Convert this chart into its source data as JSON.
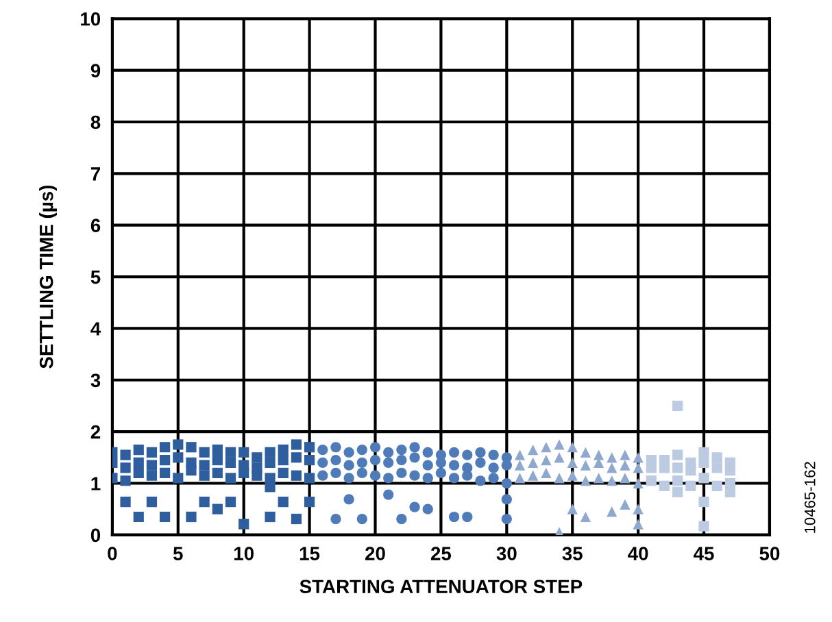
{
  "chart_data": {
    "type": "scatter",
    "xlabel": "STARTING ATTENUATOR STEP",
    "ylabel": "SETTLING TIME (µs)",
    "xlim": [
      0,
      50
    ],
    "ylim": [
      0,
      10
    ],
    "xticks": [
      0,
      5,
      10,
      15,
      20,
      25,
      30,
      35,
      40,
      45,
      50
    ],
    "yticks": [
      0,
      1,
      2,
      3,
      4,
      5,
      6,
      7,
      8,
      9,
      10
    ],
    "grid": true,
    "legend": false,
    "annotations": [
      "10465-162"
    ],
    "series": [
      {
        "color": "#2e5e9e",
        "marker": "square",
        "x": [
          0,
          0,
          0,
          1,
          1,
          1,
          2,
          2,
          2,
          3,
          3,
          3,
          4,
          4,
          4,
          5,
          5,
          5,
          6,
          6,
          6,
          7,
          7,
          7,
          8,
          8,
          8,
          9,
          9,
          9,
          10,
          10,
          10,
          11,
          11,
          11,
          12,
          12,
          12,
          13,
          13,
          13,
          14,
          14,
          14,
          15,
          15,
          15,
          1,
          2,
          3,
          4,
          6,
          7,
          8,
          9,
          10,
          12,
          12,
          13,
          14,
          15
        ],
        "values": [
          1.6,
          1.4,
          1.1,
          1.55,
          1.3,
          1.05,
          1.65,
          1.4,
          1.2,
          1.6,
          1.35,
          1.15,
          1.7,
          1.45,
          1.2,
          1.75,
          1.5,
          1.1,
          1.7,
          1.4,
          1.25,
          1.6,
          1.35,
          1.15,
          1.65,
          1.45,
          1.2,
          1.6,
          1.4,
          1.1,
          1.6,
          1.35,
          1.2,
          1.5,
          1.3,
          1.15,
          1.6,
          1.4,
          1.1,
          1.65,
          1.45,
          1.2,
          1.75,
          1.5,
          1.15,
          1.7,
          1.45,
          1.1,
          0.64,
          0.35,
          0.64,
          0.35,
          0.35,
          0.64,
          0.5,
          0.64,
          0.21,
          0.35,
          0.93,
          0.64,
          0.31,
          0.64
        ]
      },
      {
        "color": "#4f7cb8",
        "marker": "circle",
        "x": [
          16,
          16,
          16,
          17,
          17,
          17,
          18,
          18,
          18,
          19,
          19,
          19,
          20,
          20,
          20,
          21,
          21,
          21,
          22,
          22,
          22,
          23,
          23,
          23,
          24,
          24,
          24,
          25,
          25,
          25,
          26,
          26,
          26,
          27,
          27,
          27,
          28,
          28,
          28,
          29,
          29,
          29,
          30,
          30,
          30,
          17,
          18,
          19,
          21,
          22,
          23,
          24,
          26,
          27,
          30,
          30
        ],
        "values": [
          1.65,
          1.4,
          1.15,
          1.7,
          1.45,
          1.2,
          1.6,
          1.35,
          1.1,
          1.65,
          1.4,
          1.2,
          1.7,
          1.45,
          1.15,
          1.6,
          1.4,
          1.1,
          1.65,
          1.45,
          1.2,
          1.7,
          1.5,
          1.15,
          1.6,
          1.35,
          1.1,
          1.55,
          1.4,
          1.2,
          1.6,
          1.35,
          1.1,
          1.55,
          1.3,
          1.15,
          1.6,
          1.4,
          1.05,
          1.55,
          1.3,
          1.1,
          1.5,
          1.35,
          1.0,
          0.31,
          0.69,
          0.31,
          0.78,
          0.31,
          0.54,
          0.5,
          0.35,
          0.35,
          0.31,
          0.69
        ]
      },
      {
        "color": "#8ea8cf",
        "marker": "triangle",
        "x": [
          31,
          31,
          31,
          32,
          32,
          32,
          33,
          33,
          33,
          34,
          34,
          34,
          35,
          35,
          35,
          36,
          36,
          36,
          37,
          37,
          37,
          38,
          38,
          38,
          39,
          39,
          39,
          40,
          40,
          40,
          34,
          35,
          36,
          38,
          39,
          40,
          40
        ],
        "values": [
          1.55,
          1.35,
          1.1,
          1.65,
          1.4,
          1.15,
          1.7,
          1.45,
          1.2,
          1.75,
          1.5,
          1.1,
          1.7,
          1.4,
          1.15,
          1.6,
          1.35,
          1.05,
          1.55,
          1.4,
          1.1,
          1.5,
          1.3,
          1.05,
          1.55,
          1.35,
          1.1,
          1.5,
          1.3,
          1.0,
          0.05,
          0.5,
          0.35,
          0.45,
          0.59,
          0.21,
          0.5
        ]
      },
      {
        "color": "#bccbe2",
        "marker": "square",
        "x": [
          41,
          41,
          41,
          42,
          42,
          42,
          43,
          43,
          43,
          44,
          44,
          44,
          45,
          45,
          45,
          46,
          46,
          46,
          47,
          47,
          47,
          43,
          43,
          45,
          45,
          47
        ],
        "values": [
          1.45,
          1.3,
          1.05,
          1.45,
          1.3,
          0.95,
          1.55,
          1.3,
          1.05,
          1.4,
          1.25,
          0.95,
          1.6,
          1.4,
          1.1,
          1.5,
          1.3,
          0.95,
          1.4,
          1.25,
          1.0,
          0.83,
          2.5,
          0.64,
          0.17,
          0.83
        ]
      }
    ]
  }
}
